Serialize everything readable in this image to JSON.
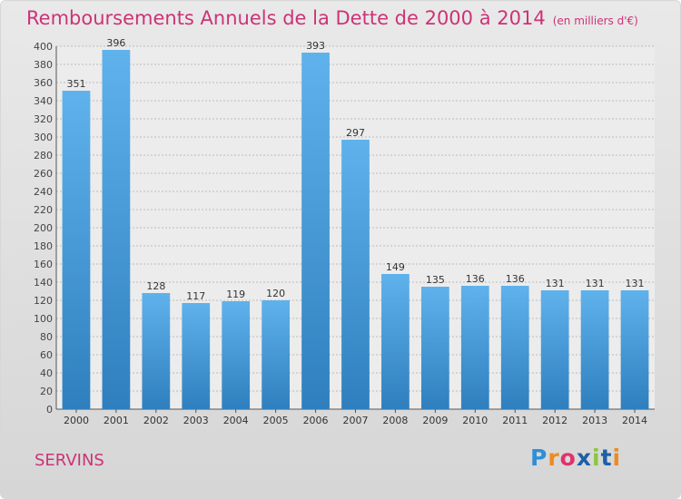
{
  "title": "Remboursements Annuels de la Dette de 2000 à 2014",
  "unit": "(en milliers d'€)",
  "commune": "SERVINS",
  "logo": {
    "letters": [
      "P",
      "r",
      "o",
      "x",
      "i",
      "t",
      "i"
    ],
    "colors": [
      "#2e8fd6",
      "#f08a1d",
      "#e0326e",
      "#1e5fa8",
      "#8cc63f",
      "#1e5fa8",
      "#f08a1d"
    ]
  },
  "colors": {
    "bar_light": "#5fb2ec",
    "bar_dark": "#2f7fbe",
    "title": "#cc3377"
  },
  "chart_data": {
    "type": "bar",
    "categories": [
      "2000",
      "2001",
      "2002",
      "2003",
      "2004",
      "2005",
      "2006",
      "2007",
      "2008",
      "2009",
      "2010",
      "2011",
      "2012",
      "2013",
      "2014"
    ],
    "values": [
      351,
      396,
      128,
      117,
      119,
      120,
      393,
      297,
      149,
      135,
      136,
      136,
      131,
      131,
      131
    ],
    "ylim": [
      0,
      400
    ],
    "yticks": [
      0,
      20,
      40,
      60,
      80,
      100,
      120,
      140,
      160,
      180,
      200,
      220,
      240,
      260,
      280,
      300,
      320,
      340,
      360,
      380,
      400
    ],
    "grid": true,
    "xlabel": "",
    "ylabel": ""
  }
}
